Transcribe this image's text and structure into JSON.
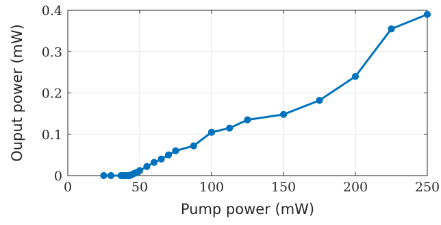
{
  "chart_data": {
    "type": "line",
    "title": "",
    "xlabel": "Pump power (mW)",
    "ylabel": "Ouput power (mW)",
    "xlim": [
      0,
      250
    ],
    "ylim": [
      0,
      0.4
    ],
    "xticks": [
      0,
      50,
      100,
      150,
      200,
      250
    ],
    "yticks": [
      0,
      0.1,
      0.2,
      0.3,
      0.4
    ],
    "xtick_labels": [
      "0",
      "50",
      "100",
      "150",
      "200",
      "250"
    ],
    "ytick_labels": [
      "0",
      "0.1",
      "0.2",
      "0.3",
      "0.4"
    ],
    "grid": true,
    "series": [
      {
        "color": "#0072BD",
        "marker": "circle",
        "x": [
          25,
          30,
          37,
          38,
          39,
          40,
          41,
          42,
          43,
          44,
          45,
          46,
          48,
          50,
          55,
          60,
          65,
          70,
          75,
          87.5,
          100,
          112.5,
          125,
          150,
          175,
          200,
          225,
          250
        ],
        "y": [
          0.0,
          0.0,
          0.0,
          0.0,
          0.0,
          0.0,
          0.0,
          0.0,
          0.0,
          0.002,
          0.003,
          0.005,
          0.008,
          0.012,
          0.022,
          0.032,
          0.04,
          0.05,
          0.06,
          0.072,
          0.105,
          0.115,
          0.135,
          0.148,
          0.182,
          0.24,
          0.355,
          0.39
        ]
      }
    ]
  }
}
